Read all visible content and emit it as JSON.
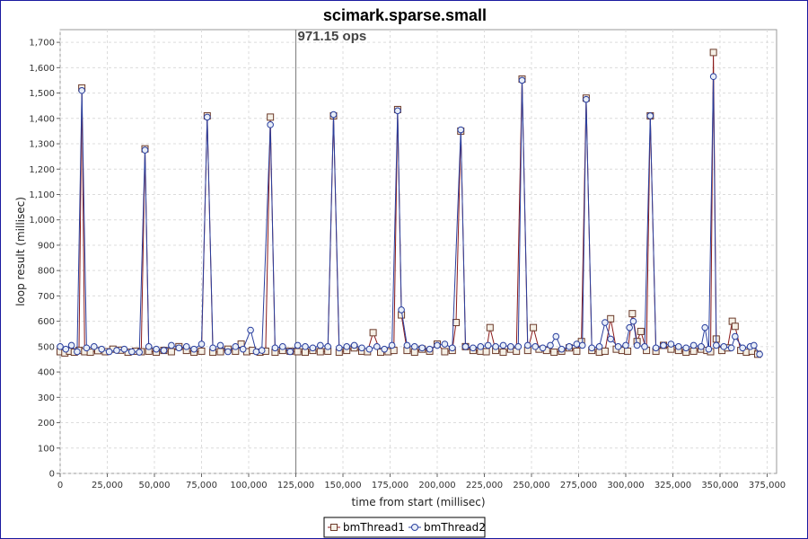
{
  "chart_data": {
    "type": "line",
    "title": "scimark.sparse.small",
    "xlabel": "time from start (millisec)",
    "ylabel": "loop result (millisec)",
    "xlim": [
      0,
      380000
    ],
    "ylim": [
      0,
      1750
    ],
    "xticks": [
      0,
      25000,
      50000,
      75000,
      100000,
      125000,
      150000,
      175000,
      200000,
      225000,
      250000,
      275000,
      300000,
      325000,
      350000,
      375000
    ],
    "xtick_labels": [
      "0",
      "25,000",
      "50,000",
      "75,000",
      "100,000",
      "125,000",
      "150,000",
      "175,000",
      "200,000",
      "225,000",
      "250,000",
      "275,000",
      "300,000",
      "325,000",
      "350,000",
      "375,000"
    ],
    "yticks": [
      0,
      100,
      200,
      300,
      400,
      500,
      600,
      700,
      800,
      900,
      1000,
      1100,
      1200,
      1300,
      1400,
      1500,
      1600,
      1700
    ],
    "ytick_labels": [
      "0",
      "100",
      "200",
      "300",
      "400",
      "500",
      "600",
      "700",
      "800",
      "900",
      "1,000",
      "1,100",
      "1,200",
      "1,300",
      "1,400",
      "1,500",
      "1,600",
      "1,700"
    ],
    "grid": true,
    "legend_position": "bottom-center",
    "annotation": {
      "x": 125000,
      "label": "971.15 ops"
    },
    "series": [
      {
        "name": "bmThread1",
        "marker": "square",
        "color": "#8b1a1a",
        "x": [
          0,
          2500,
          5000,
          7500,
          10000,
          11500,
          13000,
          16000,
          20000,
          24000,
          28000,
          32000,
          36000,
          40000,
          43000,
          45000,
          47000,
          51000,
          55000,
          59000,
          63000,
          67000,
          71000,
          75000,
          78000,
          81000,
          85000,
          89000,
          93000,
          96000,
          99000,
          102000,
          106000,
          109000,
          111500,
          114000,
          118000,
          122000,
          126000,
          130000,
          134000,
          138000,
          142000,
          145000,
          148000,
          152000,
          156000,
          160000,
          163000,
          166000,
          170000,
          174000,
          177000,
          179000,
          181000,
          184000,
          188000,
          192000,
          196000,
          200000,
          204000,
          208000,
          210000,
          212500,
          215000,
          219000,
          223000,
          226000,
          228000,
          231000,
          235000,
          239000,
          242000,
          245000,
          248000,
          251000,
          254000,
          258000,
          262000,
          266000,
          270000,
          274000,
          276500,
          279000,
          282000,
          286000,
          289000,
          292000,
          295000,
          298000,
          301000,
          303500,
          306000,
          308000,
          311000,
          313000,
          316000,
          320000,
          324000,
          328000,
          332000,
          336000,
          340000,
          343000,
          345000,
          346500,
          348000,
          351000,
          354000,
          356500,
          358000,
          361000,
          364000,
          367000,
          370000
        ],
        "values": [
          480,
          475,
          482,
          478,
          485,
          1520,
          480,
          478,
          484,
          480,
          490,
          486,
          478,
          482,
          480,
          1280,
          482,
          478,
          485,
          480,
          500,
          485,
          478,
          482,
          1410,
          478,
          480,
          490,
          482,
          510,
          480,
          485,
          478,
          482,
          1405,
          478,
          485,
          482,
          480,
          478,
          485,
          480,
          482,
          1410,
          478,
          485,
          495,
          482,
          480,
          555,
          478,
          480,
          485,
          1435,
          625,
          485,
          478,
          490,
          482,
          510,
          480,
          485,
          595,
          1350,
          500,
          485,
          482,
          480,
          575,
          485,
          478,
          490,
          482,
          1555,
          485,
          575,
          490,
          485,
          478,
          482,
          495,
          482,
          520,
          1480,
          485,
          478,
          482,
          610,
          490,
          485,
          482,
          630,
          520,
          560,
          485,
          1410,
          482,
          505,
          490,
          485,
          478,
          482,
          490,
          485,
          480,
          1660,
          530,
          485,
          495,
          600,
          580,
          485,
          478,
          482,
          470
        ]
      },
      {
        "name": "bmThread2",
        "marker": "circle",
        "color": "#2a3f9e",
        "x": [
          0,
          3000,
          6000,
          9000,
          11500,
          14000,
          18000,
          22000,
          26000,
          30000,
          34000,
          38000,
          42000,
          45000,
          47000,
          51000,
          55000,
          59000,
          63000,
          67000,
          71000,
          75000,
          78000,
          81000,
          85000,
          89000,
          93000,
          97000,
          101000,
          104000,
          107000,
          111500,
          114000,
          118000,
          122000,
          126000,
          130000,
          134000,
          138000,
          142000,
          145000,
          148000,
          152000,
          156000,
          160000,
          164000,
          168000,
          172000,
          176000,
          179000,
          181000,
          184000,
          188000,
          192000,
          196000,
          200000,
          204000,
          208000,
          212500,
          215000,
          219000,
          223000,
          227000,
          231000,
          235000,
          239000,
          243000,
          245000,
          248000,
          252000,
          256000,
          260000,
          263000,
          266000,
          270000,
          274000,
          277000,
          279000,
          282000,
          286000,
          289000,
          292000,
          296000,
          300000,
          302000,
          304000,
          306000,
          310000,
          313000,
          316000,
          320000,
          324000,
          328000,
          332000,
          336000,
          340000,
          342000,
          344000,
          346500,
          348000,
          352000,
          356000,
          358000,
          362000,
          366000,
          368000,
          371000
        ],
        "values": [
          500,
          490,
          505,
          480,
          1510,
          495,
          500,
          490,
          480,
          485,
          490,
          480,
          478,
          1275,
          500,
          490,
          485,
          505,
          495,
          500,
          490,
          510,
          1405,
          495,
          505,
          480,
          500,
          490,
          565,
          480,
          485,
          1375,
          495,
          500,
          480,
          505,
          500,
          495,
          505,
          500,
          1415,
          495,
          500,
          505,
          495,
          490,
          500,
          490,
          505,
          1430,
          645,
          505,
          500,
          495,
          490,
          505,
          510,
          495,
          1355,
          500,
          495,
          500,
          505,
          500,
          505,
          500,
          500,
          1550,
          505,
          500,
          495,
          505,
          540,
          490,
          500,
          510,
          505,
          1475,
          495,
          500,
          595,
          530,
          500,
          505,
          575,
          600,
          505,
          500,
          1410,
          495,
          505,
          510,
          500,
          495,
          505,
          500,
          575,
          490,
          1565,
          505,
          500,
          495,
          540,
          495,
          500,
          505,
          470
        ]
      }
    ]
  }
}
